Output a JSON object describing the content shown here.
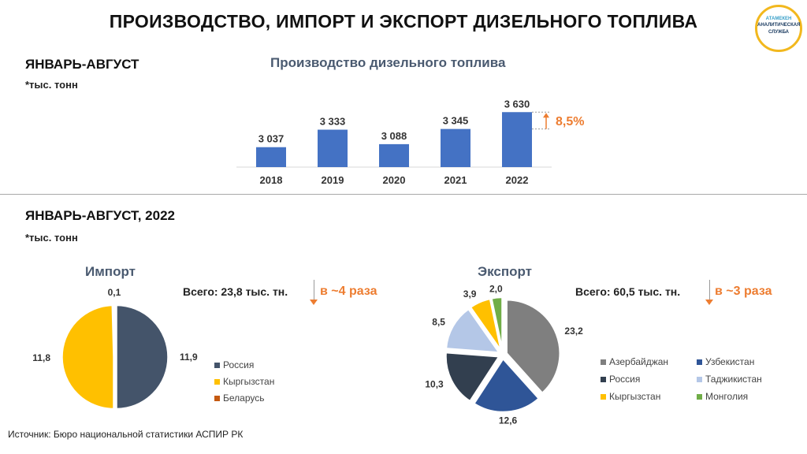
{
  "header": {
    "title": "ПРОИЗВОДСТВО, ИМПОРТ И ЭКСПОРТ ДИЗЕЛЬНОГО ТОПЛИВА"
  },
  "logo": {
    "line1": "АТАМЕКЕН",
    "line2": "АНАЛИТИЧЕСКАЯ",
    "line3": "СЛУЖБА"
  },
  "section1": {
    "period": "ЯНВАРЬ-АВГУСТ",
    "unit": "*тыс. тонн"
  },
  "section2": {
    "period": "ЯНВАРЬ-АВГУСТ, 2022",
    "unit": "*тыс. тонн"
  },
  "import": {
    "total": "Всего: 23,8 тыс. тн.",
    "change": "в ~4 раза"
  },
  "export": {
    "total": "Всего: 60,5 тыс. тн.",
    "change": "в ~3 раза"
  },
  "footer": {
    "source": "Источник: Бюро национальной  статистики  АСПИР РК"
  },
  "colors": {
    "bar": "#4472c4",
    "accent": "#ed7d31"
  },
  "chart_data": [
    {
      "type": "bar",
      "title": "Производство дизельного топлива",
      "categories": [
        "2018",
        "2019",
        "2020",
        "2021",
        "2022"
      ],
      "values": [
        3037,
        3333,
        3088,
        3345,
        3630
      ],
      "labels": [
        "3 037",
        "3 333",
        "3 088",
        "3 345",
        "3 630"
      ],
      "annotation": "8,5%",
      "ylim": [
        2700,
        3700
      ]
    },
    {
      "type": "pie",
      "title": "Импорт",
      "slices": [
        {
          "name": "Россия",
          "value": 11.9,
          "label": "11,9",
          "color": "#44546a"
        },
        {
          "name": "Кыргызстан",
          "value": 11.8,
          "label": "11,8",
          "color": "#ffc000"
        },
        {
          "name": "Беларусь",
          "value": 0.1,
          "label": "0,1",
          "color": "#c55a11"
        }
      ]
    },
    {
      "type": "pie",
      "title": "Экспорт",
      "slices": [
        {
          "name": "Азербайджан",
          "value": 23.2,
          "label": "23,2",
          "color": "#7f7f7f"
        },
        {
          "name": "Узбекистан",
          "value": 12.6,
          "label": "12,6",
          "color": "#2f5597"
        },
        {
          "name": "Россия",
          "value": 10.3,
          "label": "10,3",
          "color": "#323f4f"
        },
        {
          "name": "Таджикистан",
          "value": 8.5,
          "label": "8,5",
          "color": "#b4c7e7"
        },
        {
          "name": "Кыргызстан",
          "value": 3.9,
          "label": "3,9",
          "color": "#ffc000"
        },
        {
          "name": "Монголия",
          "value": 2.0,
          "label": "2,0",
          "color": "#70ad47"
        }
      ]
    }
  ]
}
